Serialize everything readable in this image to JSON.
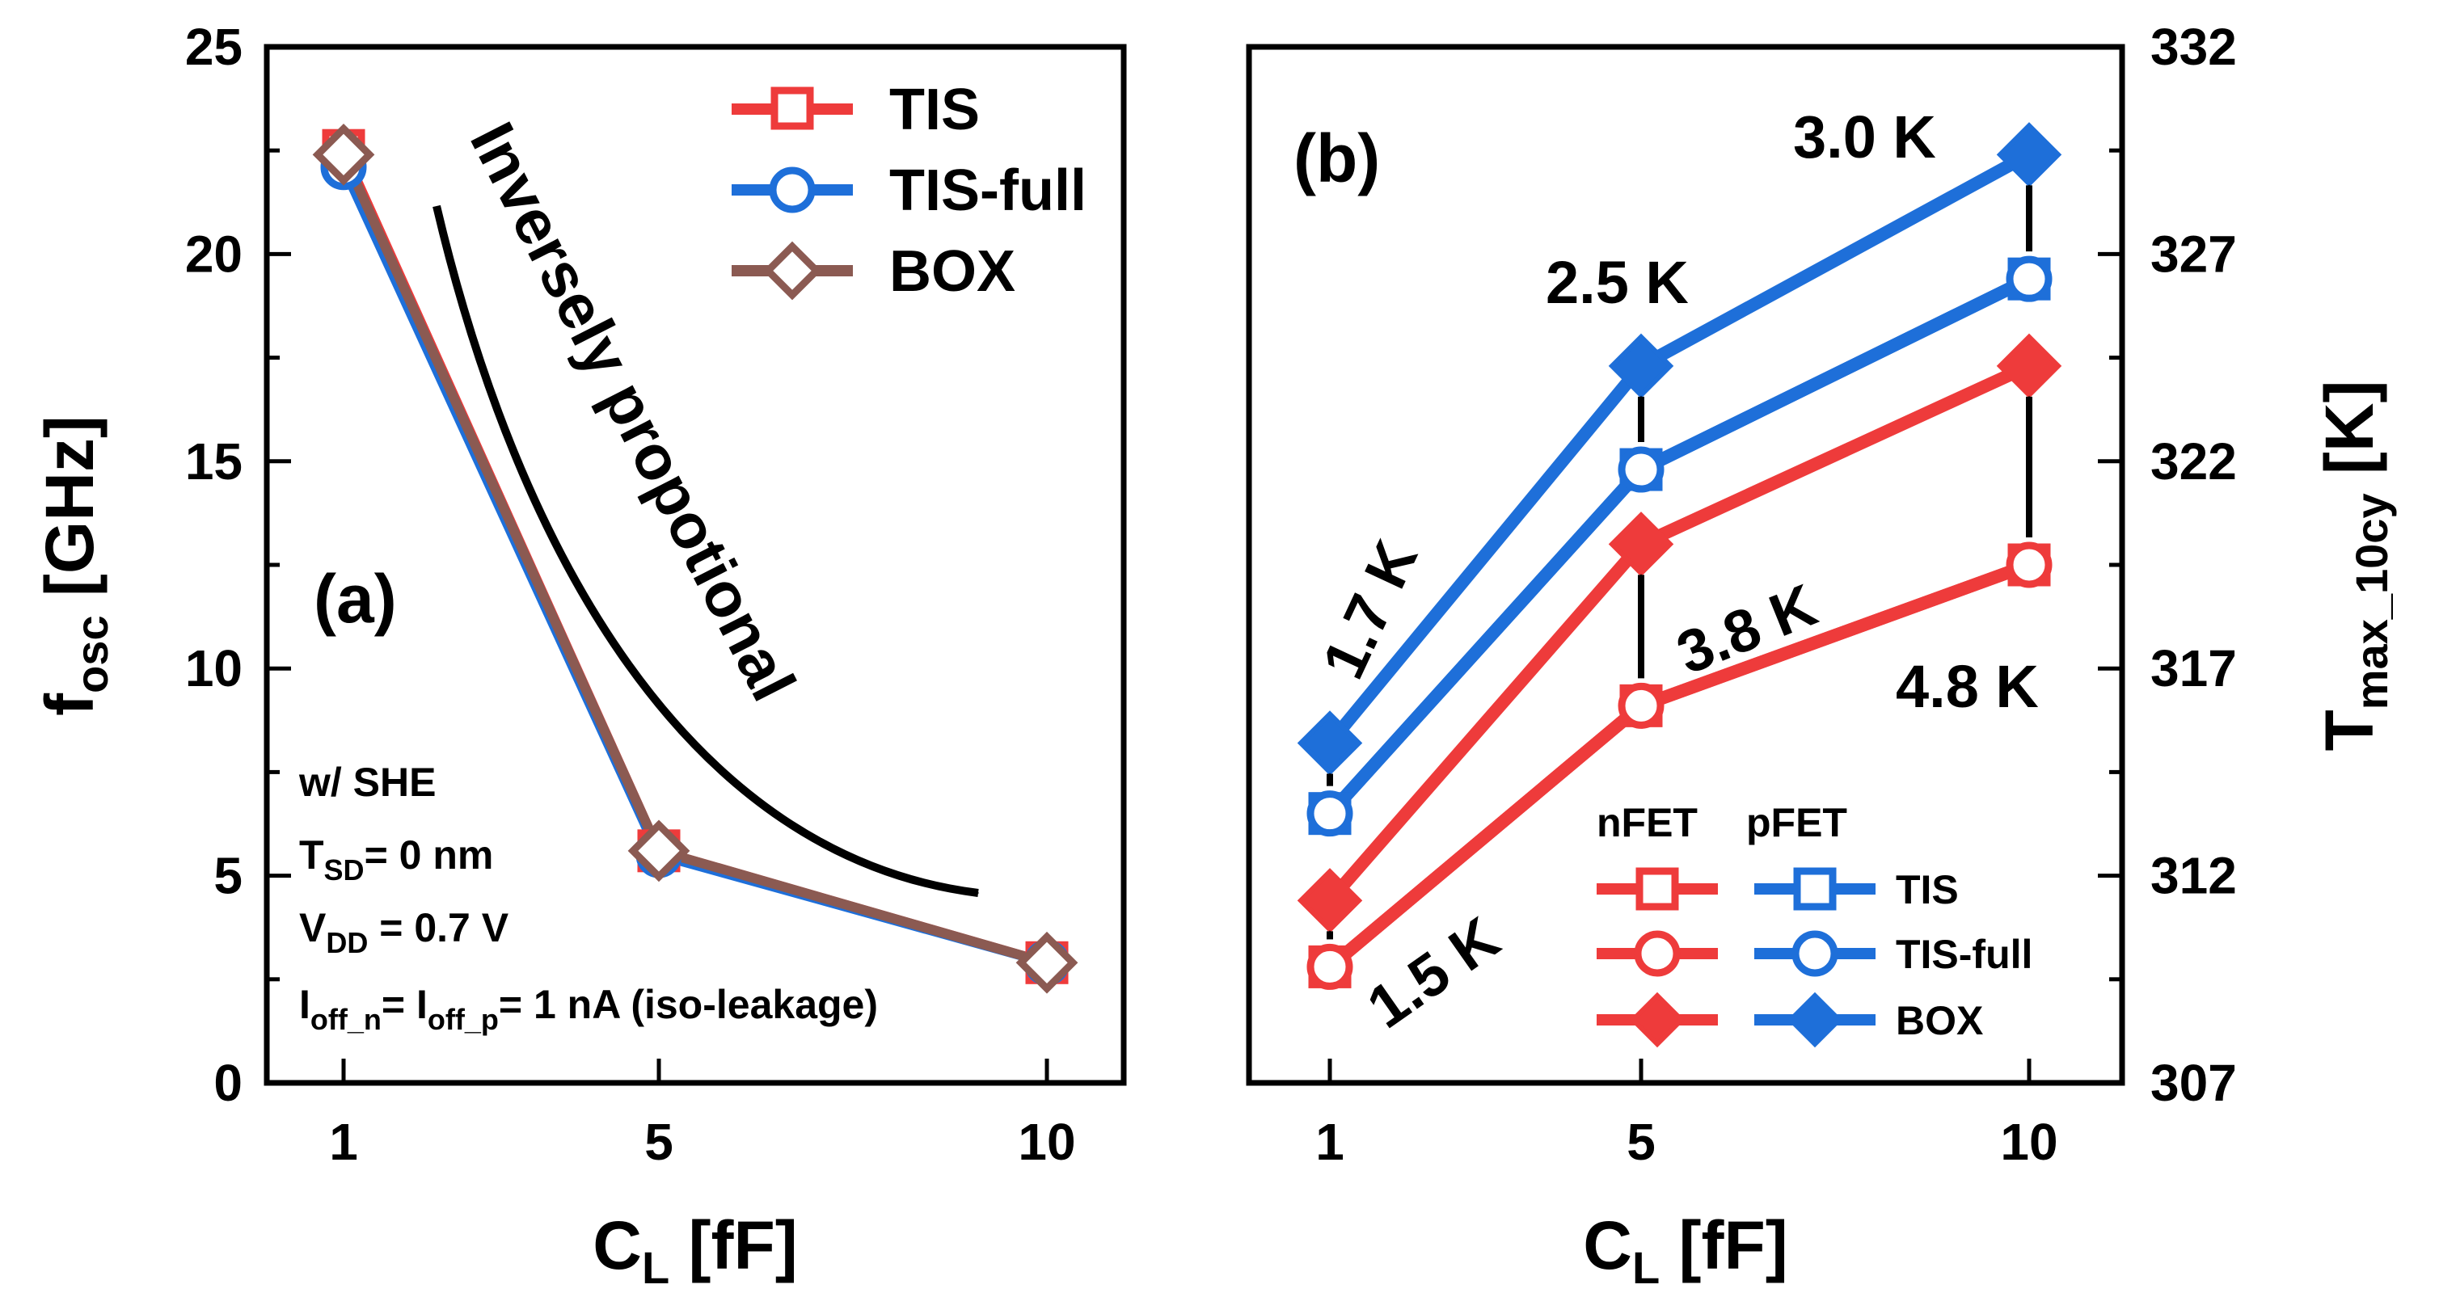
{
  "colors": {
    "nfet": "#EE3B3B",
    "pfet": "#1E6FD9",
    "box_a": "#8B5A52",
    "axis": "#000000",
    "arrow": "#000000"
  },
  "chart_data": [
    {
      "panel_label": "(a)",
      "type": "line",
      "x_categories": [
        "1",
        "5",
        "10"
      ],
      "xlabel": {
        "main": "C",
        "sub": "L",
        "unit": " [fF]"
      },
      "ylabel": {
        "main": "f",
        "sub": "osc",
        "unit": " [GHz]"
      },
      "ylim": [
        0,
        25
      ],
      "y_ticks": [
        "0",
        "5",
        "10",
        "15",
        "20",
        "25"
      ],
      "series": [
        {
          "name": "TIS",
          "marker": "square-open",
          "color": "#EE3B3B",
          "values": [
            22.5,
            5.6,
            2.9
          ]
        },
        {
          "name": "TIS-full",
          "marker": "circle-open",
          "color": "#1E6FD9",
          "values": [
            22.1,
            5.5,
            2.9
          ]
        },
        {
          "name": "BOX",
          "marker": "diamond-open",
          "color": "#8B5A52",
          "values": [
            22.4,
            5.6,
            2.9
          ]
        }
      ],
      "trend_text": "Inversely propotional",
      "conditions": [
        {
          "parts": [
            [
              "w/ SHE",
              ""
            ]
          ]
        },
        {
          "parts": [
            [
              "T",
              ""
            ],
            [
              "SD",
              "sub"
            ],
            [
              "= 0 nm",
              ""
            ]
          ]
        },
        {
          "parts": [
            [
              "V",
              ""
            ],
            [
              "DD",
              "sub"
            ],
            [
              " = 0.7 V",
              ""
            ]
          ]
        },
        {
          "parts": [
            [
              "I",
              ""
            ],
            [
              "off_n",
              "sub"
            ],
            [
              "= I",
              ""
            ],
            [
              "off_p",
              "sub"
            ],
            [
              "= 1 nA (iso-leakage)",
              ""
            ]
          ]
        }
      ]
    },
    {
      "panel_label": "(b)",
      "type": "line",
      "x_categories": [
        "1",
        "5",
        "10"
      ],
      "xlabel": {
        "main": "C",
        "sub": "L",
        "unit": " [fF]"
      },
      "ylabel": {
        "main": "T",
        "sub": "max_10cy",
        "unit": " [K]"
      },
      "ylim": [
        307,
        332
      ],
      "y_ticks": [
        "307",
        "312",
        "317",
        "322",
        "327",
        "332"
      ],
      "series": [
        {
          "name": "nFET TIS",
          "marker": "square-open",
          "color": "#EE3B3B",
          "values": [
            309.8,
            316.1,
            319.5
          ]
        },
        {
          "name": "nFET TIS-full",
          "marker": "circle-open",
          "color": "#EE3B3B",
          "values": [
            309.8,
            316.1,
            319.5
          ]
        },
        {
          "name": "nFET BOX",
          "marker": "diamond-filled",
          "color": "#EE3B3B",
          "values": [
            311.4,
            320.0,
            324.3
          ]
        },
        {
          "name": "pFET TIS",
          "marker": "square-open",
          "color": "#1E6FD9",
          "values": [
            313.5,
            321.8,
            326.4
          ]
        },
        {
          "name": "pFET TIS-full",
          "marker": "circle-open",
          "color": "#1E6FD9",
          "values": [
            313.5,
            321.8,
            326.4
          ]
        },
        {
          "name": "pFET BOX",
          "marker": "diamond-filled",
          "color": "#1E6FD9",
          "values": [
            315.2,
            324.3,
            329.4
          ]
        }
      ],
      "legend": {
        "col_headers": [
          "nFET",
          "pFET"
        ],
        "rows": [
          "TIS",
          "TIS-full",
          "BOX"
        ]
      },
      "deltas": [
        {
          "x": "1",
          "from": 309.8,
          "to": 311.4,
          "label": "1.5 K"
        },
        {
          "x": "1",
          "from": 313.5,
          "to": 315.2,
          "label": "1.7 K"
        },
        {
          "x": "5",
          "from": 316.1,
          "to": 320.0,
          "label": "3.8 K"
        },
        {
          "x": "5",
          "from": 321.8,
          "to": 324.3,
          "label": "2.5 K"
        },
        {
          "x": "10",
          "from": 319.5,
          "to": 324.3,
          "label": "4.8 K"
        },
        {
          "x": "10",
          "from": 326.4,
          "to": 329.4,
          "label": "3.0 K"
        }
      ]
    }
  ]
}
